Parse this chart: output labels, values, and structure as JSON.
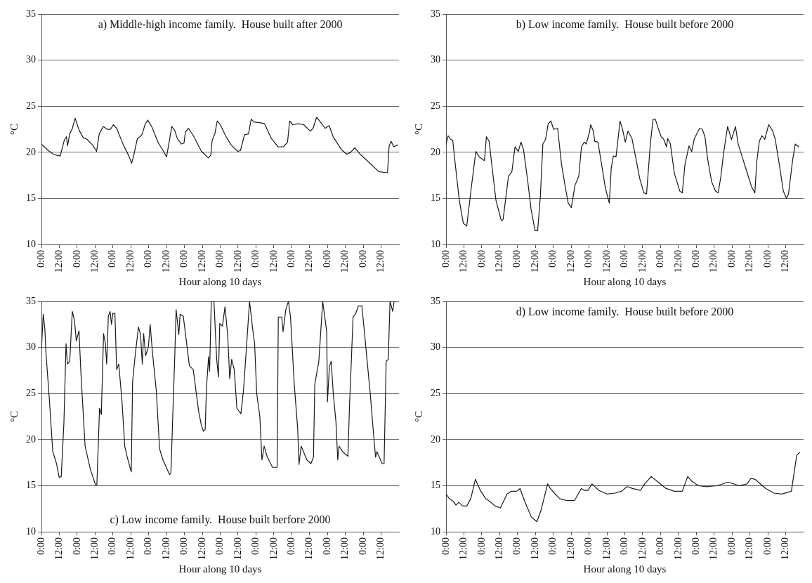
{
  "chart_data": [
    {
      "type": "line",
      "title": "a) Middle-high income family.  House built after 2000",
      "xlabel": "Hour along 10 days",
      "ylabel": "°C",
      "xlim": [
        "2000-01-01T00:00",
        "2000-01-11T00:00"
      ],
      "ylim": [
        10,
        35
      ],
      "yticks": [
        10,
        15,
        20,
        25,
        30,
        35
      ],
      "xticks": [
        {
          "value": "2000-01-01T00:00",
          "label": "0:00"
        },
        {
          "value": "2000-01-01T12:00",
          "label": "12:00"
        },
        {
          "value": "2000-01-02T00:00",
          "label": "0:00"
        },
        {
          "value": "2000-01-02T12:00",
          "label": "12:00"
        },
        {
          "value": "2000-01-03T00:00",
          "label": "0:00"
        },
        {
          "value": "2000-01-03T12:00",
          "label": "12:00"
        },
        {
          "value": "2000-01-04T00:00",
          "label": "0:00"
        },
        {
          "value": "2000-01-04T12:00",
          "label": "12:00"
        },
        {
          "value": "2000-01-05T00:00",
          "label": "0:00"
        },
        {
          "value": "2000-01-05T12:00",
          "label": "12:00"
        },
        {
          "value": "2000-01-06T00:00",
          "label": "0:00"
        },
        {
          "value": "2000-01-06T12:00",
          "label": "12:00"
        },
        {
          "value": "2000-01-07T00:00",
          "label": "0:00"
        },
        {
          "value": "2000-01-07T12:00",
          "label": "12:00"
        },
        {
          "value": "2000-01-08T00:00",
          "label": "0:00"
        },
        {
          "value": "2000-01-08T12:00",
          "label": "12:00"
        },
        {
          "value": "2000-01-09T00:00",
          "label": "0:00"
        },
        {
          "value": "2000-01-09T12:00",
          "label": "12:00"
        },
        {
          "value": "2000-01-10T00:00",
          "label": "0:00"
        },
        {
          "value": "2000-01-10T12:00",
          "label": "12:00"
        }
      ],
      "grid": "y",
      "legend": false,
      "marker": "none",
      "line_style": "solid",
      "series": [
        {
          "color": "#1a1a1a",
          "x": [
            "2000-01-01T00:00",
            "2000-01-01T04:30",
            "2000-01-01T08:00",
            "2000-01-01T10:00",
            "2000-01-01T12:36",
            "2000-01-01T15:18",
            "2000-01-01T16:48",
            "2000-01-01T17:30",
            "2000-01-01T19:00",
            "2000-01-01T20:48",
            "2000-01-01T22:36",
            "2000-01-02T01:18",
            "2000-01-02T04:00",
            "2000-01-02T06:42",
            "2000-01-02T10:18",
            "2000-01-02T13:00",
            "2000-01-02T14:48",
            "2000-01-02T17:30",
            "2000-01-02T20:12",
            "2000-01-02T22:24",
            "2000-01-03T00:12",
            "2000-01-03T02:30",
            "2000-01-03T07:00",
            "2000-01-03T10:42",
            "2000-01-03T12:30",
            "2000-01-03T14:00",
            "2000-01-03T16:24",
            "2000-01-03T18:12",
            "2000-01-03T19:42",
            "2000-01-03T21:30",
            "2000-01-03T23:18",
            "2000-01-04T02:00",
            "2000-01-04T06:30",
            "2000-01-04T10:00",
            "2000-01-04T12:00",
            "2000-01-04T15:30",
            "2000-01-04T17:24",
            "2000-01-04T19:12",
            "2000-01-04T21:54",
            "2000-01-04T23:42",
            "2000-01-05T00:36",
            "2000-01-05T02:42",
            "2000-01-05T06:00",
            "2000-01-05T11:24",
            "2000-01-05T16:00",
            "2000-01-05T17:42",
            "2000-01-05T18:36",
            "2000-01-05T20:24",
            "2000-01-05T22:00",
            "2000-01-06T00:00",
            "2000-01-06T03:36",
            "2000-01-06T07:18",
            "2000-01-06T11:48",
            "2000-01-06T13:36",
            "2000-01-06T16:18",
            "2000-01-06T19:00",
            "2000-01-06T20:48",
            "2000-01-06T22:36",
            "2000-01-07T03:06",
            "2000-01-07T05:48",
            "2000-01-07T10:18",
            "2000-01-07T14:48",
            "2000-01-07T18:30",
            "2000-01-07T21:12",
            "2000-01-07T22:36",
            "2000-01-08T00:48",
            "2000-01-08T04:24",
            "2000-01-08T08:00",
            "2000-01-08T12:30",
            "2000-01-08T14:18",
            "2000-01-08T16:42",
            "2000-01-08T19:42",
            "2000-01-08T22:24",
            "2000-01-09T01:06",
            "2000-01-09T03:48",
            "2000-01-09T09:18",
            "2000-01-09T12:54",
            "2000-01-09T15:36",
            "2000-01-09T18:18",
            "2000-01-09T21:54",
            "2000-01-10T03:18",
            "2000-01-10T10:30",
            "2000-01-10T15:00",
            "2000-01-10T16:18",
            "2000-01-10T17:24",
            "2000-01-10T18:42",
            "2000-01-10T20:30",
            "2000-01-10T23:12"
          ],
          "values": [
            20.9,
            20.2,
            19.8,
            19.7,
            19.6,
            21.3,
            21.7,
            20.7,
            22.0,
            22.6,
            23.7,
            22.4,
            21.6,
            21.4,
            20.8,
            20.1,
            22.0,
            22.8,
            22.5,
            22.5,
            23.0,
            22.6,
            20.8,
            19.6,
            18.8,
            19.7,
            21.5,
            21.7,
            22.0,
            23.0,
            23.5,
            22.8,
            21.0,
            20.1,
            19.5,
            22.8,
            22.4,
            21.5,
            20.9,
            21.0,
            22.2,
            22.6,
            21.8,
            20.1,
            19.4,
            19.7,
            21.3,
            22.0,
            23.4,
            23.0,
            21.8,
            20.8,
            20.1,
            20.2,
            21.9,
            22.0,
            23.6,
            23.3,
            23.2,
            23.1,
            21.5,
            20.6,
            20.6,
            21.1,
            23.4,
            23.0,
            23.1,
            23.0,
            22.3,
            22.6,
            23.8,
            23.2,
            22.6,
            22.9,
            21.7,
            20.3,
            19.8,
            20.0,
            20.5,
            19.8,
            19.0,
            17.9,
            17.8,
            17.8,
            20.7,
            21.2,
            20.6,
            20.8
          ]
        }
      ]
    },
    {
      "type": "line",
      "title": "b) Low income family.  House built before 2000",
      "xlabel": "Hour along 10 days",
      "ylabel": "°C",
      "xlim": [
        "2000-01-01T00:00",
        "2000-01-11T00:00"
      ],
      "ylim": [
        10,
        35
      ],
      "yticks": [
        10,
        15,
        20,
        25,
        30,
        35
      ],
      "xticks": [
        {
          "value": "2000-01-01T00:00",
          "label": "0:00"
        },
        {
          "value": "2000-01-01T12:00",
          "label": "12:00"
        },
        {
          "value": "2000-01-02T00:00",
          "label": "0:00"
        },
        {
          "value": "2000-01-02T12:00",
          "label": "12:00"
        },
        {
          "value": "2000-01-03T00:00",
          "label": "0:00"
        },
        {
          "value": "2000-01-03T12:00",
          "label": "12:00"
        },
        {
          "value": "2000-01-04T00:00",
          "label": "0:00"
        },
        {
          "value": "2000-01-04T12:00",
          "label": "12:00"
        },
        {
          "value": "2000-01-05T00:00",
          "label": "0:00"
        },
        {
          "value": "2000-01-05T12:00",
          "label": "12:00"
        },
        {
          "value": "2000-01-06T00:00",
          "label": "0:00"
        },
        {
          "value": "2000-01-06T12:00",
          "label": "12:00"
        },
        {
          "value": "2000-01-07T00:00",
          "label": "0:00"
        },
        {
          "value": "2000-01-07T12:00",
          "label": "12:00"
        },
        {
          "value": "2000-01-08T00:00",
          "label": "0:00"
        },
        {
          "value": "2000-01-08T12:00",
          "label": "12:00"
        },
        {
          "value": "2000-01-09T00:00",
          "label": "0:00"
        },
        {
          "value": "2000-01-09T12:00",
          "label": "12:00"
        },
        {
          "value": "2000-01-10T00:00",
          "label": "0:00"
        },
        {
          "value": "2000-01-10T12:00",
          "label": "12:00"
        }
      ],
      "grid": "y",
      "legend": false,
      "marker": "none",
      "line_style": "solid",
      "series": [
        {
          "color": "#1a1a1a",
          "x": [
            "2000-01-01T00:00",
            "2000-01-01T01:24",
            "2000-01-01T03:12",
            "2000-01-01T04:30",
            "2000-01-01T06:12",
            "2000-01-01T08:54",
            "2000-01-01T11:36",
            "2000-01-01T13:54",
            "2000-01-01T16:54",
            "2000-01-01T20:00",
            "2000-01-01T22:18",
            "2000-01-02T01:48",
            "2000-01-02T03:06",
            "2000-01-02T04:54",
            "2000-01-02T07:12",
            "2000-01-02T09:30",
            "2000-01-02T13:06",
            "2000-01-02T14:18",
            "2000-01-02T17:54",
            "2000-01-02T20:12",
            "2000-01-02T22:18",
            "2000-01-03T00:30",
            "2000-01-03T02:18",
            "2000-01-03T04:00",
            "2000-01-03T06:54",
            "2000-01-03T09:00",
            "2000-01-03T11:42",
            "2000-01-03T13:30",
            "2000-01-03T15:18",
            "2000-01-03T17:00",
            "2000-01-03T18:48",
            "2000-01-03T20:36",
            "2000-01-03T22:24",
            "2000-01-04T00:12",
            "2000-01-04T02:54",
            "2000-01-04T05:30",
            "2000-01-04T08:12",
            "2000-01-04T10:00",
            "2000-01-04T12:06",
            "2000-01-04T14:30",
            "2000-01-04T17:06",
            "2000-01-04T18:54",
            "2000-01-04T20:42",
            "2000-01-04T22:06",
            "2000-01-05T00:18",
            "2000-01-05T01:06",
            "2000-01-05T02:54",
            "2000-01-05T03:48",
            "2000-01-05T06:00",
            "2000-01-05T08:18",
            "2000-01-05T11:00",
            "2000-01-05T13:36",
            "2000-01-05T14:54",
            "2000-01-05T16:18",
            "2000-01-05T18:06",
            "2000-01-05T20:48",
            "2000-01-05T22:30",
            "2000-01-06T00:18",
            "2000-01-06T02:06",
            "2000-01-06T04:48",
            "2000-01-06T07:30",
            "2000-01-06T10:06",
            "2000-01-06T12:48",
            "2000-01-06T14:36",
            "2000-01-06T17:18",
            "2000-01-06T19:00",
            "2000-01-06T20:30",
            "2000-01-06T22:36",
            "2000-01-07T00:24",
            "2000-01-07T02:12",
            "2000-01-07T04:00",
            "2000-01-07T04:48",
            "2000-01-07T06:36",
            "2000-01-07T09:18",
            "2000-01-07T12:54",
            "2000-01-07T14:36",
            "2000-01-07T16:24",
            "2000-01-07T19:06",
            "2000-01-07T20:54",
            "2000-01-07T22:42",
            "2000-01-08T02:12",
            "2000-01-08T04:00",
            "2000-01-08T05:48",
            "2000-01-08T07:36",
            "2000-01-08T10:18",
            "2000-01-08T12:54",
            "2000-01-08T14:42",
            "2000-01-08T16:30",
            "2000-01-08T18:18",
            "2000-01-08T21:00",
            "2000-01-08T23:36",
            "2000-01-09T02:18",
            "2000-01-09T04:06",
            "2000-01-09T06:48",
            "2000-01-09T10:18",
            "2000-01-09T13:00",
            "2000-01-09T15:18",
            "2000-01-09T16:36",
            "2000-01-09T18:18",
            "2000-01-09T20:06",
            "2000-01-09T21:54",
            "2000-01-10T00:36",
            "2000-01-10T03:18",
            "2000-01-10T05:00",
            "2000-01-10T07:42",
            "2000-01-10T10:24",
            "2000-01-10T12:30",
            "2000-01-10T13:54",
            "2000-01-10T16:36",
            "2000-01-10T18:24",
            "2000-01-10T20:42"
          ],
          "values": [
            20.9,
            21.8,
            21.4,
            21.3,
            18.7,
            14.8,
            12.3,
            12.0,
            16.1,
            20.1,
            19.5,
            19.1,
            21.7,
            21.2,
            18.0,
            14.8,
            12.6,
            12.7,
            17.4,
            17.9,
            20.6,
            20.1,
            21.1,
            20.3,
            16.8,
            13.9,
            11.5,
            11.5,
            15.2,
            20.9,
            21.4,
            23.1,
            23.4,
            22.5,
            22.6,
            18.7,
            16.1,
            14.5,
            14.0,
            16.4,
            17.4,
            20.6,
            21.1,
            20.9,
            22.2,
            23.0,
            22.3,
            21.2,
            21.1,
            18.8,
            16.1,
            14.5,
            18.3,
            19.6,
            19.5,
            23.4,
            22.5,
            21.1,
            22.3,
            21.5,
            19.3,
            17.1,
            15.6,
            15.5,
            21.2,
            23.6,
            23.6,
            22.5,
            21.7,
            21.4,
            20.6,
            21.5,
            20.9,
            17.7,
            15.8,
            15.6,
            18.7,
            20.7,
            20.1,
            21.5,
            22.6,
            22.5,
            21.7,
            19.3,
            16.8,
            15.8,
            15.6,
            17.4,
            19.9,
            22.8,
            21.4,
            22.8,
            20.9,
            19.5,
            17.7,
            16.3,
            15.6,
            19.0,
            21.2,
            21.8,
            21.4,
            23.0,
            22.3,
            21.4,
            18.7,
            15.8,
            15.0,
            15.5,
            19.1,
            20.9,
            20.6
          ]
        }
      ]
    },
    {
      "type": "line",
      "title": "c) Low income family.  House built berfore 2000",
      "xlabel": "Hour along 10 days",
      "ylabel": "°C",
      "xlim": [
        "2000-01-01T00:00",
        "2000-01-11T00:00"
      ],
      "ylim": [
        10,
        35
      ],
      "yticks": [
        10,
        15,
        20,
        25,
        30,
        35
      ],
      "xticks": [
        {
          "value": "2000-01-01T00:00",
          "label": "0:00"
        },
        {
          "value": "2000-01-01T12:00",
          "label": "12:00"
        },
        {
          "value": "2000-01-02T00:00",
          "label": "0:00"
        },
        {
          "value": "2000-01-02T12:00",
          "label": "12:00"
        },
        {
          "value": "2000-01-03T00:00",
          "label": "0:00"
        },
        {
          "value": "2000-01-03T12:00",
          "label": "12:00"
        },
        {
          "value": "2000-01-04T00:00",
          "label": "0:00"
        },
        {
          "value": "2000-01-04T12:00",
          "label": "12:00"
        },
        {
          "value": "2000-01-05T00:00",
          "label": "0:00"
        },
        {
          "value": "2000-01-05T12:00",
          "label": "12:00"
        },
        {
          "value": "2000-01-06T00:00",
          "label": "0:00"
        },
        {
          "value": "2000-01-06T12:00",
          "label": "12:00"
        },
        {
          "value": "2000-01-07T00:00",
          "label": "0:00"
        },
        {
          "value": "2000-01-07T12:00",
          "label": "12:00"
        },
        {
          "value": "2000-01-08T00:00",
          "label": "0:00"
        },
        {
          "value": "2000-01-08T12:00",
          "label": "12:00"
        },
        {
          "value": "2000-01-09T00:00",
          "label": "0:00"
        },
        {
          "value": "2000-01-09T12:00",
          "label": "12:00"
        },
        {
          "value": "2000-01-10T00:00",
          "label": "0:00"
        },
        {
          "value": "2000-01-10T12:00",
          "label": "12:00"
        }
      ],
      "grid": "y",
      "legend": false,
      "marker": "none",
      "line_style": "solid",
      "series": [
        {
          "color": "#1a1a1a",
          "x": [
            "2000-01-01T00:00",
            "2000-01-01T01:12",
            "2000-01-01T02:18",
            "2000-01-01T03:00",
            "2000-01-01T05:18",
            "2000-01-01T07:36",
            "2000-01-01T10:06",
            "2000-01-01T11:54",
            "2000-01-01T13:18",
            "2000-01-01T15:06",
            "2000-01-01T16:30",
            "2000-01-01T17:24",
            "2000-01-01T19:00",
            "2000-01-01T20:42",
            "2000-01-01T22:12",
            "2000-01-01T23:24",
            "2000-01-02T01:12",
            "2000-01-02T02:36",
            "2000-01-02T05:18",
            "2000-01-02T08:48",
            "2000-01-02T12:18",
            "2000-01-02T13:12",
            "2000-01-02T15:00",
            "2000-01-02T16:12",
            "2000-01-02T17:42",
            "2000-01-02T18:54",
            "2000-01-02T19:48",
            "2000-01-02T20:54",
            "2000-01-02T22:06",
            "2000-01-02T23:00",
            "2000-01-02T23:54",
            "2000-01-03T01:18",
            "2000-01-03T02:30",
            "2000-01-03T03:54",
            "2000-01-03T06:06",
            "2000-01-03T07:54",
            "2000-01-03T09:36",
            "2000-01-03T12:18",
            "2000-01-03T13:12",
            "2000-01-03T14:54",
            "2000-01-03T17:06",
            "2000-01-03T18:30",
            "2000-01-03T19:42",
            "2000-01-03T20:36",
            "2000-01-03T22:00",
            "2000-01-03T23:48",
            "2000-01-04T01:00",
            "2000-01-04T02:30",
            "2000-01-04T05:06",
            "2000-01-04T07:18",
            "2000-01-04T09:36",
            "2000-01-04T14:00",
            "2000-01-04T14:54",
            "2000-01-04T17:30",
            "2000-01-04T18:24",
            "2000-01-04T20:12",
            "2000-01-04T21:06",
            "2000-01-04T23:12",
            "2000-01-05T01:30",
            "2000-01-05T03:18",
            "2000-01-05T05:54",
            "2000-01-05T09:30",
            "2000-01-05T11:18",
            "2000-01-05T12:42",
            "2000-01-05T13:54",
            "2000-01-05T14:48",
            "2000-01-05T16:12",
            "2000-01-05T16:54",
            "2000-01-05T18:00",
            "2000-01-05T19:48",
            "2000-01-05T21:36",
            "2000-01-05T22:48",
            "2000-01-05T23:42",
            "2000-01-06T01:30",
            "2000-01-06T03:12",
            "2000-01-06T05:00",
            "2000-01-06T06:24",
            "2000-01-06T07:42",
            "2000-01-06T09:24",
            "2000-01-06T11:12",
            "2000-01-06T13:54",
            "2000-01-06T15:36",
            "2000-01-06T17:24",
            "2000-01-06T19:42",
            "2000-01-06T21:48",
            "2000-01-06T23:06",
            "2000-01-07T00:30",
            "2000-01-07T02:36",
            "2000-01-07T04:00",
            "2000-01-07T05:30",
            "2000-01-07T07:36",
            "2000-01-07T11:06",
            "2000-01-07T14:12",
            "2000-01-07T15:00",
            "2000-01-07T17:18",
            "2000-01-07T18:12",
            "2000-01-07T20:00",
            "2000-01-07T21:48",
            "2000-01-07T23:12",
            "2000-01-08T01:42",
            "2000-01-08T04:00",
            "2000-01-08T04:54",
            "2000-01-08T06:18",
            "2000-01-08T10:12",
            "2000-01-08T12:54",
            "2000-01-08T14:36",
            "2000-01-08T15:30",
            "2000-01-08T18:12",
            "2000-01-08T20:48",
            "2000-01-08T23:30",
            "2000-01-09T00:00",
            "2000-01-09T01:18",
            "2000-01-09T02:30",
            "2000-01-09T03:54",
            "2000-01-09T05:42",
            "2000-01-09T06:54",
            "2000-01-09T07:48",
            "2000-01-09T10:06",
            "2000-01-09T13:42",
            "2000-01-09T14:54",
            "2000-01-09T17:12",
            "2000-01-09T19:00",
            "2000-01-09T20:48",
            "2000-01-09T23:06",
            "2000-01-10T01:12",
            "2000-01-10T04:42",
            "2000-01-10T07:24",
            "2000-01-10T08:18",
            "2000-01-10T09:12",
            "2000-01-10T12:42",
            "2000-01-10T14:00",
            "2000-01-10T15:24",
            "2000-01-10T16:48",
            "2000-01-10T18:00",
            "2000-01-10T19:48",
            "2000-01-10T20:42"
          ],
          "values": [
            29.8,
            33.6,
            32.0,
            29.5,
            24.4,
            18.7,
            17.4,
            15.9,
            16.0,
            21.9,
            30.4,
            28.2,
            28.5,
            33.9,
            32.9,
            30.7,
            31.8,
            26.9,
            19.3,
            16.8,
            15.1,
            15.1,
            23.4,
            22.7,
            31.5,
            30.4,
            28.2,
            33.4,
            33.9,
            32.5,
            33.7,
            33.7,
            27.6,
            28.2,
            24.1,
            19.3,
            18.1,
            16.5,
            26.3,
            29.1,
            32.2,
            31.4,
            28.2,
            31.5,
            29.1,
            30.1,
            32.5,
            29.5,
            25.3,
            19.0,
            17.8,
            16.2,
            16.4,
            29.1,
            34.1,
            31.4,
            33.6,
            33.4,
            30.4,
            28.0,
            27.6,
            23.1,
            21.6,
            20.9,
            21.1,
            25.7,
            29.0,
            27.4,
            35,
            35,
            28.8,
            26.8,
            32.6,
            32.3,
            34.4,
            31.4,
            26.6,
            28.7,
            27.6,
            23.4,
            22.8,
            25.3,
            29.5,
            35,
            32.0,
            30.4,
            25.0,
            22.5,
            17.8,
            19.3,
            18.1,
            17.0,
            17.0,
            33.3,
            33.3,
            31.7,
            34.1,
            35,
            33.3,
            26.0,
            21.2,
            17.3,
            19.3,
            17.8,
            17.4,
            18.1,
            26.0,
            28.5,
            35,
            31.7,
            24.1,
            27.9,
            28.5,
            25.0,
            21.9,
            17.8,
            19.3,
            18.7,
            18.2,
            24.1,
            33.3,
            33.7,
            34.5,
            34.5,
            31.0,
            25.0,
            19.7,
            18.1,
            18.7,
            17.4,
            17.4,
            28.5,
            28.7,
            35,
            33.9,
            35
          ]
        }
      ]
    },
    {
      "type": "line",
      "title": "d) Low income family.  House built before 2000",
      "xlabel": "Hour along 10 days",
      "ylabel": "°C",
      "xlim": [
        "2000-01-01T00:00",
        "2000-01-11T00:00"
      ],
      "ylim": [
        10,
        35
      ],
      "yticks": [
        10,
        15,
        20,
        25,
        30,
        35
      ],
      "xticks": [
        {
          "value": "2000-01-01T00:00",
          "label": "0:00"
        },
        {
          "value": "2000-01-01T12:00",
          "label": "12:00"
        },
        {
          "value": "2000-01-02T00:00",
          "label": "0:00"
        },
        {
          "value": "2000-01-02T12:00",
          "label": "12:00"
        },
        {
          "value": "2000-01-03T00:00",
          "label": "0:00"
        },
        {
          "value": "2000-01-03T12:00",
          "label": "12:00"
        },
        {
          "value": "2000-01-04T00:00",
          "label": "0:00"
        },
        {
          "value": "2000-01-04T12:00",
          "label": "12:00"
        },
        {
          "value": "2000-01-05T00:00",
          "label": "0:00"
        },
        {
          "value": "2000-01-05T12:00",
          "label": "12:00"
        },
        {
          "value": "2000-01-06T00:00",
          "label": "0:00"
        },
        {
          "value": "2000-01-06T12:00",
          "label": "12:00"
        },
        {
          "value": "2000-01-07T00:00",
          "label": "0:00"
        },
        {
          "value": "2000-01-07T12:00",
          "label": "12:00"
        },
        {
          "value": "2000-01-08T00:00",
          "label": "0:00"
        },
        {
          "value": "2000-01-08T12:00",
          "label": "12:00"
        },
        {
          "value": "2000-01-09T00:00",
          "label": "0:00"
        },
        {
          "value": "2000-01-09T12:00",
          "label": "12:00"
        },
        {
          "value": "2000-01-10T00:00",
          "label": "0:00"
        },
        {
          "value": "2000-01-10T12:00",
          "label": "12:00"
        }
      ],
      "grid": "y",
      "legend": false,
      "marker": "none",
      "line_style": "solid",
      "series": [
        {
          "color": "#1a1a1a",
          "x": [
            "2000-01-01T00:00",
            "2000-01-01T02:12",
            "2000-01-01T04:54",
            "2000-01-01T06:42",
            "2000-01-01T08:30",
            "2000-01-01T11:12",
            "2000-01-01T13:54",
            "2000-01-01T16:36",
            "2000-01-01T19:42",
            "2000-01-01T23:00",
            "2000-01-02T02:36",
            "2000-01-02T05:18",
            "2000-01-02T08:54",
            "2000-01-02T12:30",
            "2000-01-02T17:00",
            "2000-01-02T19:48",
            "2000-01-02T23:24",
            "2000-01-03T01:42",
            "2000-01-03T04:48",
            "2000-01-03T09:18",
            "2000-01-03T13:00",
            "2000-01-03T15:42",
            "2000-01-03T20:12",
            "2000-01-03T22:00",
            "2000-01-04T00:42",
            "2000-01-04T04:18",
            "2000-01-04T08:48",
            "2000-01-04T14:18",
            "2000-01-04T18:48",
            "2000-01-04T20:36",
            "2000-01-04T23:18",
            "2000-01-05T02:00",
            "2000-01-05T06:30",
            "2000-01-05T11:54",
            "2000-01-05T17:24",
            "2000-01-05T21:54",
            "2000-01-06T01:30",
            "2000-01-06T05:06",
            "2000-01-06T10:36",
            "2000-01-06T13:18",
            "2000-01-06T17:48",
            "2000-01-06T22:18",
            "2000-01-07T03:42",
            "2000-01-07T09:12",
            "2000-01-07T14:36",
            "2000-01-07T18:12",
            "2000-01-07T20:54",
            "2000-01-08T01:24",
            "2000-01-08T06:54",
            "2000-01-08T14:06",
            "2000-01-08T21:18",
            "2000-01-09T04:36",
            "2000-01-09T10:00",
            "2000-01-09T12:42",
            "2000-01-09T15:24",
            "2000-01-09T22:36",
            "2000-01-10T04:06",
            "2000-01-10T09:30",
            "2000-01-10T15:48",
            "2000-01-10T19:24",
            "2000-01-10T21:18"
          ],
          "values": [
            14.1,
            13.6,
            13.3,
            12.9,
            13.2,
            12.8,
            12.8,
            13.6,
            15.7,
            14.5,
            13.6,
            13.3,
            12.8,
            12.6,
            14.1,
            14.4,
            14.4,
            14.7,
            13.3,
            11.6,
            11.1,
            12.3,
            15.2,
            14.7,
            14.2,
            13.6,
            13.4,
            13.4,
            14.7,
            14.5,
            14.5,
            15.2,
            14.5,
            14.1,
            14.2,
            14.4,
            14.9,
            14.7,
            14.5,
            15.2,
            16.0,
            15.4,
            14.7,
            14.4,
            14.4,
            16.0,
            15.5,
            15.0,
            14.9,
            15.0,
            15.4,
            15.0,
            15.2,
            15.8,
            15.7,
            14.7,
            14.2,
            14.1,
            14.4,
            18.3,
            18.6
          ]
        }
      ]
    }
  ]
}
